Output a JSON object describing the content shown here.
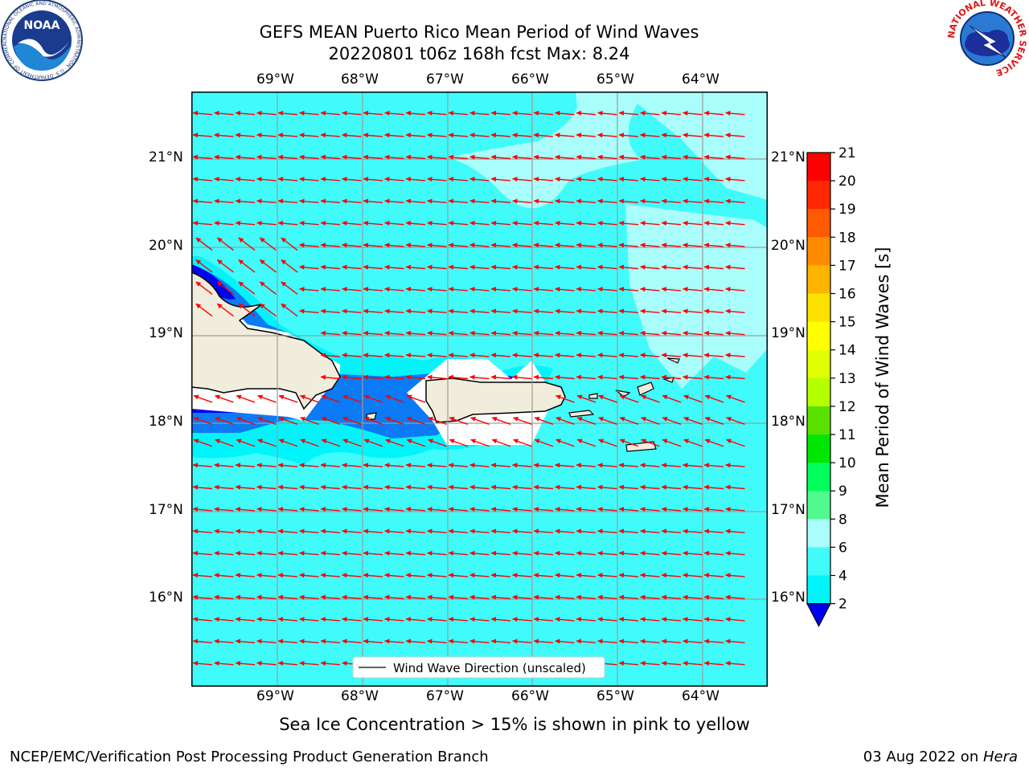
{
  "header": {
    "title_line1": "GEFS MEAN Puerto Rico Mean Period of Wind Waves",
    "title_line2": "20220801 t06z 168h fcst   Max: 8.24"
  },
  "logos": {
    "left": {
      "name": "noaa-logo",
      "text": "NOAA",
      "ring_text": "NATIONAL OCEANIC AND ATMOSPHERIC ADMINISTRATION · U.S. DEPARTMENT OF COMMERCE"
    },
    "right": {
      "name": "nws-logo",
      "ring_text": "NATIONAL WEATHER SERVICE"
    }
  },
  "map": {
    "lon_ticks": [
      "69°W",
      "68°W",
      "67°W",
      "66°W",
      "65°W",
      "64°W"
    ],
    "lat_ticks": [
      "21°N",
      "20°N",
      "19°N",
      "18°N",
      "17°N",
      "16°N"
    ],
    "lon_values": [
      -69,
      -68,
      -67,
      -66,
      -65,
      -64
    ],
    "lat_values": [
      21,
      20,
      19,
      18,
      17,
      16
    ],
    "extent": {
      "lon_min": -70,
      "lon_max": -63.25,
      "lat_min": 15,
      "lat_max": 21.75
    },
    "legend_label": "Wind Wave Direction (unscaled)",
    "colors": {
      "ocean_6_8": "#41fbfb",
      "ocean_8_9": "#a9fdfb",
      "ocean_4_6": "#00f5fa",
      "ocean_2_4": "#0a7bf5",
      "ocean_lt2": "#0000f0",
      "land": "#f0eddc",
      "masked": "#ffffff",
      "arrow": "#ff0000"
    }
  },
  "colorbar": {
    "label": "Mean Period of Wind Waves [s]",
    "ticks": [
      "21",
      "20",
      "19",
      "18",
      "17",
      "16",
      "15",
      "14",
      "13",
      "12",
      "11",
      "10",
      "9",
      "8",
      "6",
      "4",
      "2"
    ],
    "colors": [
      "#ff0000",
      "#ff2800",
      "#ff5a00",
      "#ff8c00",
      "#ffb400",
      "#ffe100",
      "#ffff00",
      "#e1ff00",
      "#b4ff00",
      "#5ae100",
      "#00e600",
      "#00ff5a",
      "#50fa8c",
      "#a9fdfb",
      "#41fbfb",
      "#00f5fa",
      "#0a7bf5"
    ],
    "under_color": "#0000f0"
  },
  "caption": "Sea Ice Concentration > 15% is shown in pink to yellow",
  "footer": {
    "left": "NCEP/EMC/Verification Post Processing Product Generation Branch",
    "right_date": "03 Aug 2022 on ",
    "right_host": "Hera"
  }
}
